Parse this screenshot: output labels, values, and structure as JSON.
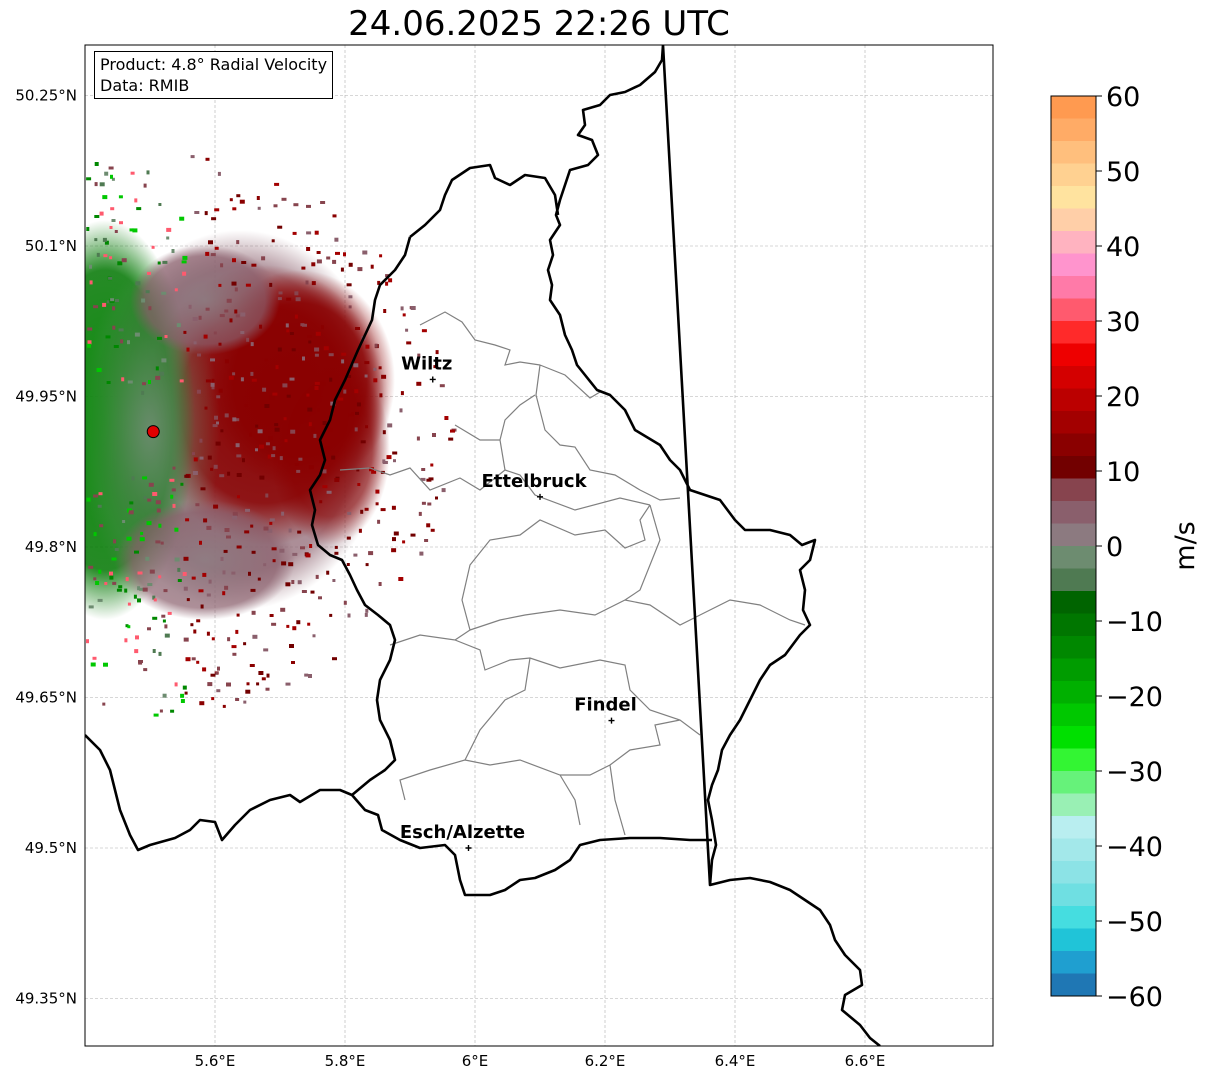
{
  "title": "24.06.2025 22:26 UTC",
  "info": {
    "product": "Product: 4.8° Radial Velocity",
    "data": "Data: RMIB"
  },
  "map": {
    "lon_range": [
      5.4,
      6.8
    ],
    "lat_range": [
      49.3,
      50.3
    ],
    "x_ticks": [
      {
        "value": 5.6,
        "label": "5.6°E"
      },
      {
        "value": 5.8,
        "label": "5.8°E"
      },
      {
        "value": 6.0,
        "label": "6°E"
      },
      {
        "value": 6.2,
        "label": "6.2°E"
      },
      {
        "value": 6.4,
        "label": "6.4°E"
      },
      {
        "value": 6.6,
        "label": "6.6°E"
      }
    ],
    "y_ticks": [
      {
        "value": 50.25,
        "label": "50.25°N"
      },
      {
        "value": 50.1,
        "label": "50.1°N"
      },
      {
        "value": 49.95,
        "label": "49.95°N"
      },
      {
        "value": 49.8,
        "label": "49.8°N"
      },
      {
        "value": 49.65,
        "label": "49.65°N"
      },
      {
        "value": 49.5,
        "label": "49.5°N"
      },
      {
        "value": 49.35,
        "label": "49.35°N"
      }
    ],
    "gridlines": true,
    "radar_site": {
      "lon": 5.505,
      "lat": 49.915
    },
    "cities": [
      {
        "name": "Wiltz",
        "lon": 5.935,
        "lat": 49.967
      },
      {
        "name": "Ettelbruck",
        "lon": 6.1,
        "lat": 49.85
      },
      {
        "name": "Findel",
        "lon": 6.21,
        "lat": 49.627
      },
      {
        "name": "Esch/Alzette",
        "lon": 5.99,
        "lat": 49.5
      }
    ]
  },
  "colorbar": {
    "label": "m/s",
    "min": -60,
    "max": 60,
    "ticks": [
      {
        "value": 60,
        "label": "60"
      },
      {
        "value": 50,
        "label": "50"
      },
      {
        "value": 40,
        "label": "40"
      },
      {
        "value": 30,
        "label": "30"
      },
      {
        "value": 20,
        "label": "20"
      },
      {
        "value": 10,
        "label": "10"
      },
      {
        "value": 0,
        "label": "0"
      },
      {
        "value": -10,
        "label": "−10"
      },
      {
        "value": -20,
        "label": "−20"
      },
      {
        "value": -30,
        "label": "−30"
      },
      {
        "value": -40,
        "label": "−40"
      },
      {
        "value": -50,
        "label": "−50"
      },
      {
        "value": -60,
        "label": "−60"
      }
    ],
    "bands": [
      {
        "from": 57,
        "to": 60,
        "color": "#ff9a50"
      },
      {
        "from": 54,
        "to": 57,
        "color": "#ffab66"
      },
      {
        "from": 51,
        "to": 54,
        "color": "#ffbf7d"
      },
      {
        "from": 48,
        "to": 51,
        "color": "#ffd191"
      },
      {
        "from": 45,
        "to": 48,
        "color": "#ffe39f"
      },
      {
        "from": 42,
        "to": 45,
        "color": "#ffcfa8"
      },
      {
        "from": 39,
        "to": 42,
        "color": "#ffb3c0"
      },
      {
        "from": 36,
        "to": 39,
        "color": "#ff94cd"
      },
      {
        "from": 33,
        "to": 36,
        "color": "#ff7aa8"
      },
      {
        "from": 30,
        "to": 33,
        "color": "#ff5a6e"
      },
      {
        "from": 27,
        "to": 30,
        "color": "#ff2a2a"
      },
      {
        "from": 24,
        "to": 27,
        "color": "#ee0000"
      },
      {
        "from": 21,
        "to": 24,
        "color": "#d40000"
      },
      {
        "from": 18,
        "to": 21,
        "color": "#bb0000"
      },
      {
        "from": 15,
        "to": 18,
        "color": "#a30000"
      },
      {
        "from": 12,
        "to": 15,
        "color": "#8a0000"
      },
      {
        "from": 9,
        "to": 12,
        "color": "#720000"
      },
      {
        "from": 6,
        "to": 9,
        "color": "#87444e"
      },
      {
        "from": 3,
        "to": 6,
        "color": "#8a5f6c"
      },
      {
        "from": 0,
        "to": 3,
        "color": "#8c7a80"
      },
      {
        "from": -3,
        "to": 0,
        "color": "#6d8c70"
      },
      {
        "from": -6,
        "to": -3,
        "color": "#4f7a52"
      },
      {
        "from": -9,
        "to": -6,
        "color": "#006400"
      },
      {
        "from": -12,
        "to": -9,
        "color": "#007600"
      },
      {
        "from": -15,
        "to": -12,
        "color": "#008800"
      },
      {
        "from": -18,
        "to": -15,
        "color": "#009c00"
      },
      {
        "from": -21,
        "to": -18,
        "color": "#00b000"
      },
      {
        "from": -24,
        "to": -21,
        "color": "#00c800"
      },
      {
        "from": -27,
        "to": -24,
        "color": "#00e000"
      },
      {
        "from": -30,
        "to": -27,
        "color": "#33f533"
      },
      {
        "from": -33,
        "to": -30,
        "color": "#66f27a"
      },
      {
        "from": -36,
        "to": -33,
        "color": "#99f0b4"
      },
      {
        "from": -39,
        "to": -36,
        "color": "#b9eef0"
      },
      {
        "from": -42,
        "to": -39,
        "color": "#a3e8ea"
      },
      {
        "from": -45,
        "to": -42,
        "color": "#8ce3e6"
      },
      {
        "from": -48,
        "to": -45,
        "color": "#6fdfe2"
      },
      {
        "from": -51,
        "to": -48,
        "color": "#45dde0"
      },
      {
        "from": -54,
        "to": -51,
        "color": "#20c4d8"
      },
      {
        "from": -57,
        "to": -54,
        "color": "#1f9fd0"
      },
      {
        "from": -60,
        "to": -57,
        "color": "#1f77b4"
      }
    ]
  }
}
